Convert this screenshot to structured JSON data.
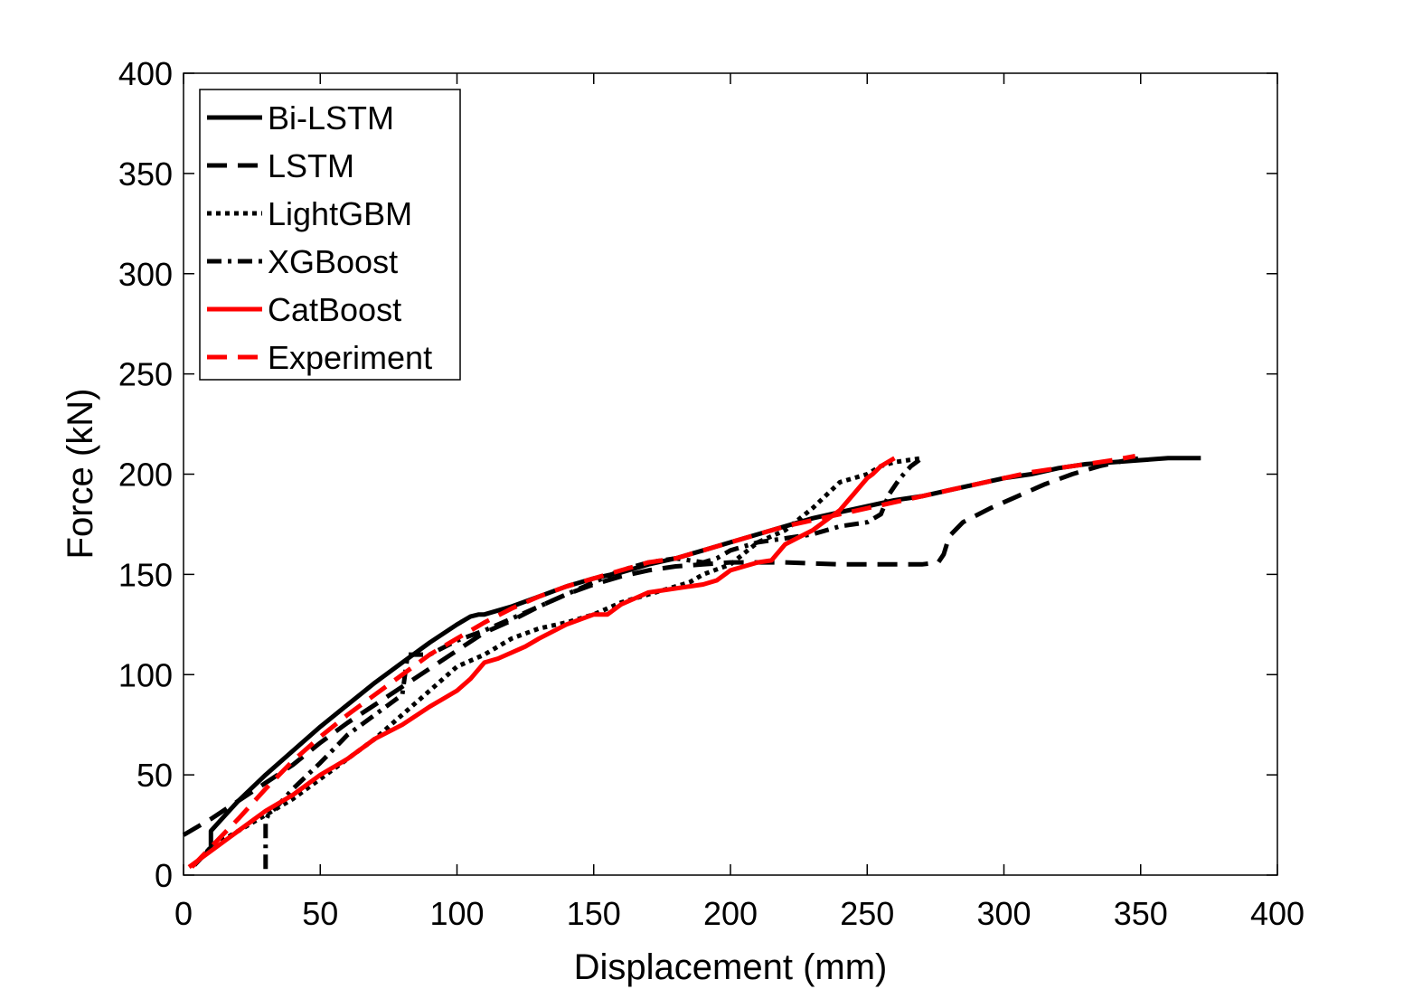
{
  "chart_data": {
    "type": "line",
    "xlabel": "Displacement (mm)",
    "ylabel": "Force (kN)",
    "xlim": [
      0,
      400
    ],
    "ylim": [
      0,
      400
    ],
    "xticks": [
      0,
      50,
      100,
      150,
      200,
      250,
      300,
      350,
      400
    ],
    "yticks": [
      0,
      50,
      100,
      150,
      200,
      250,
      300,
      350,
      400
    ],
    "grid": false,
    "legend_position": "top-left",
    "series": [
      {
        "name": "Bi-LSTM",
        "color": "#000000",
        "style": "solid",
        "x": [
          4,
          9,
          10,
          10,
          12,
          20,
          30,
          40,
          50,
          60,
          70,
          80,
          90,
          100,
          105,
          108,
          110,
          120,
          130,
          140,
          150,
          160,
          170,
          180,
          190,
          200,
          210,
          220,
          230,
          240,
          250,
          260,
          270,
          280,
          290,
          300,
          310,
          320,
          330,
          340,
          350,
          360,
          372
        ],
        "y": [
          5,
          12,
          14,
          22,
          25,
          37,
          50,
          62,
          74,
          85,
          96,
          106,
          116,
          125,
          129,
          130,
          130,
          134,
          139,
          144,
          148,
          151,
          155,
          158,
          162,
          166,
          170,
          174,
          178,
          181,
          184,
          187,
          189,
          192,
          195,
          198,
          200,
          203,
          205,
          206,
          207,
          208,
          208
        ]
      },
      {
        "name": "LSTM",
        "color": "#000000",
        "style": "dashed",
        "x": [
          0,
          10,
          20,
          30,
          40,
          50,
          60,
          70,
          80,
          90,
          100,
          110,
          120,
          130,
          140,
          150,
          160,
          170,
          180,
          190,
          200,
          220,
          240,
          260,
          270,
          276,
          278,
          280,
          285,
          295,
          305,
          315,
          325,
          335,
          345,
          350
        ],
        "y": [
          20,
          28,
          37,
          46,
          55,
          66,
          76,
          85,
          94,
          103,
          112,
          121,
          127,
          134,
          140,
          145,
          149,
          152,
          154,
          155,
          156,
          156,
          155,
          155,
          155,
          156,
          160,
          169,
          176,
          183,
          189,
          195,
          200,
          204,
          207,
          208
        ]
      },
      {
        "name": "LightGBM",
        "color": "#000000",
        "style": "dotted",
        "x": [
          4,
          10,
          20,
          30,
          40,
          50,
          60,
          70,
          80,
          90,
          100,
          110,
          115,
          120,
          130,
          140,
          150,
          160,
          170,
          180,
          185,
          190,
          200,
          210,
          220,
          230,
          240,
          250,
          255,
          260,
          265,
          270
        ],
        "y": [
          5,
          14,
          22,
          30,
          38,
          48,
          58,
          68,
          80,
          92,
          104,
          110,
          114,
          118,
          123,
          126,
          130,
          136,
          140,
          144,
          146,
          150,
          155,
          166,
          172,
          183,
          196,
          200,
          204,
          206,
          207,
          208
        ]
      },
      {
        "name": "XGBoost",
        "color": "#000000",
        "style": "dashdot",
        "x": [
          30,
          30,
          31,
          34,
          40,
          50,
          60,
          70,
          78,
          80,
          81,
          82,
          90,
          100,
          110,
          120,
          130,
          140,
          150,
          160,
          170,
          180,
          190,
          195,
          200,
          210,
          220,
          230,
          240,
          250,
          255,
          258,
          262,
          266,
          270
        ],
        "y": [
          3,
          27,
          30,
          34,
          43,
          56,
          70,
          80,
          88,
          90,
          100,
          110,
          110,
          117,
          122,
          128,
          134,
          140,
          146,
          152,
          156,
          158,
          156,
          158,
          162,
          166,
          168,
          170,
          174,
          176,
          180,
          190,
          198,
          204,
          208
        ]
      },
      {
        "name": "CatBoost",
        "color": "#ff0000",
        "style": "solid",
        "x": [
          2,
          10,
          20,
          30,
          40,
          50,
          60,
          70,
          80,
          90,
          95,
          100,
          105,
          110,
          115,
          125,
          130,
          140,
          150,
          155,
          160,
          165,
          170,
          175,
          180,
          190,
          195,
          200,
          205,
          210,
          215,
          220,
          230,
          240,
          245,
          250,
          252,
          255,
          260
        ],
        "y": [
          4,
          12,
          22,
          32,
          40,
          50,
          58,
          68,
          75,
          84,
          88,
          92,
          98,
          106,
          108,
          114,
          118,
          125,
          130,
          130,
          135,
          138,
          141,
          142,
          143,
          145,
          147,
          152,
          154,
          156,
          157,
          165,
          172,
          182,
          190,
          198,
          200,
          204,
          208
        ]
      },
      {
        "name": "Experiment",
        "color": "#ff0000",
        "style": "dashed",
        "x": [
          3,
          10,
          20,
          30,
          40,
          50,
          60,
          70,
          80,
          90,
          100,
          110,
          120,
          130,
          140,
          150,
          160,
          170,
          180,
          190,
          200,
          210,
          220,
          230,
          240,
          250,
          260,
          270,
          280,
          290,
          300,
          310,
          320,
          330,
          340,
          348
        ],
        "y": [
          4,
          14,
          28,
          43,
          57,
          69,
          80,
          90,
          100,
          110,
          118,
          126,
          133,
          139,
          144,
          148,
          152,
          156,
          158,
          162,
          166,
          170,
          174,
          177,
          180,
          183,
          186,
          189,
          192,
          195,
          198,
          201,
          203,
          205,
          207,
          209
        ]
      }
    ]
  }
}
